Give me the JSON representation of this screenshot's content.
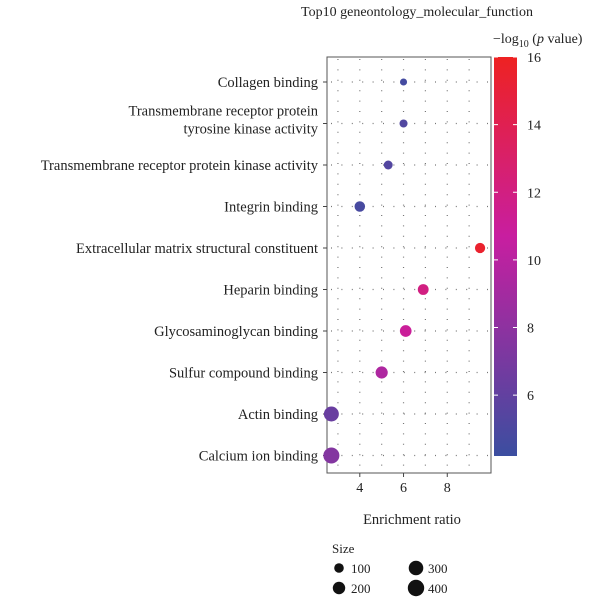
{
  "chart_data": {
    "type": "scatter",
    "title": "Top10 geneontology_molecular_function",
    "xlabel": "Enrichment ratio",
    "ylabel": "",
    "xlim": [
      2.5,
      10
    ],
    "xticks": [
      4,
      6,
      8
    ],
    "categories": [
      "Collagen binding",
      "Transmembrane receptor protein\ntyrosine kinase activity",
      "Transmembrane receptor protein kinase activity",
      "Integrin binding",
      "Extracellular matrix structural constituent",
      "Heparin binding",
      "Glycosaminoglycan binding",
      "Sulfur compound binding",
      "Actin binding",
      "Calcium ion binding"
    ],
    "points": [
      {
        "category": "Collagen binding",
        "x": 6.0,
        "size": 40,
        "neglog10p": 4.6
      },
      {
        "category": "Transmembrane receptor protein\ntyrosine kinase activity",
        "x": 6.0,
        "size": 60,
        "neglog10p": 5.2
      },
      {
        "category": "Transmembrane receptor protein kinase activity",
        "x": 5.3,
        "size": 80,
        "neglog10p": 5.3
      },
      {
        "category": "Integrin binding",
        "x": 4.0,
        "size": 130,
        "neglog10p": 4.8
      },
      {
        "category": "Extracellular matrix structural constituent",
        "x": 9.5,
        "size": 120,
        "neglog10p": 15.5
      },
      {
        "category": "Heparin binding",
        "x": 6.9,
        "size": 140,
        "neglog10p": 12.0
      },
      {
        "category": "Glycosaminoglycan binding",
        "x": 6.1,
        "size": 170,
        "neglog10p": 11.0
      },
      {
        "category": "Sulfur compound binding",
        "x": 5.0,
        "size": 190,
        "neglog10p": 9.5
      },
      {
        "category": "Actin binding",
        "x": 2.7,
        "size": 320,
        "neglog10p": 6.3
      },
      {
        "category": "Calcium ion binding",
        "x": 2.7,
        "size": 380,
        "neglog10p": 7.5
      }
    ],
    "colorbar": {
      "title_main": "−log",
      "title_sub": "10",
      "title_paren_open": " (",
      "title_p": "p",
      "title_rest": " value)",
      "min": 4.2,
      "max": 16,
      "ticks": [
        6,
        8,
        10,
        12,
        14,
        16
      ],
      "color_low": "#3b4ea0",
      "color_mid": "#c81ea0",
      "color_high": "#ee2222"
    },
    "size_legend": {
      "title": "Size",
      "entries": [
        {
          "label": "100",
          "value": 100
        },
        {
          "label": "200",
          "value": 200
        },
        {
          "label": "300",
          "value": 300
        },
        {
          "label": "400",
          "value": 400
        }
      ]
    },
    "grid": true,
    "grid_style": "dotted",
    "legend_position": "right"
  }
}
